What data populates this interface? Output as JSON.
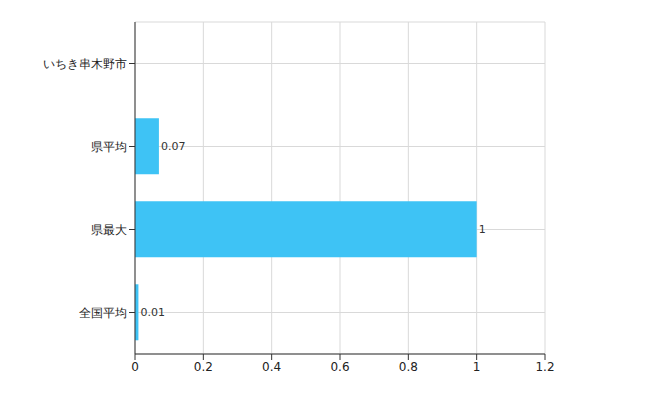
{
  "chart_data": {
    "type": "bar",
    "orientation": "horizontal",
    "categories": [
      "いちき串木野市",
      "県平均",
      "県最大",
      "全国平均"
    ],
    "values": [
      0,
      0.07,
      1,
      0.01
    ],
    "color": "#3ec3f5",
    "xlim": [
      0,
      1.2
    ],
    "xticks": [
      0,
      0.2,
      0.4,
      0.6,
      0.8,
      1,
      1.2
    ],
    "grid": true,
    "data_labels": true
  }
}
